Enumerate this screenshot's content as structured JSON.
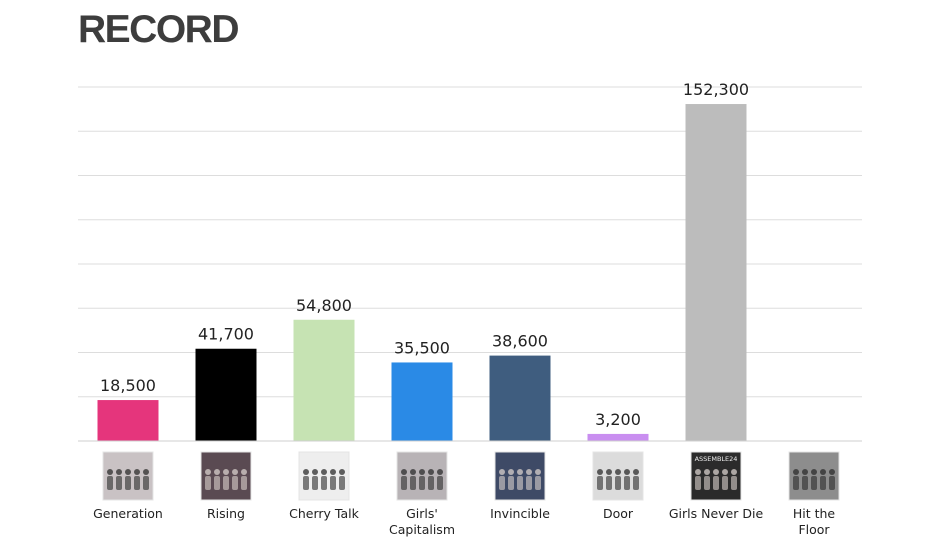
{
  "header": {
    "title": "RECORD"
  },
  "chart_data": {
    "type": "bar",
    "title": "RECORD",
    "xlabel": "",
    "ylabel": "",
    "ylim": [
      0,
      160000
    ],
    "grid": true,
    "legend": "none",
    "categories": [
      "Generation",
      "Rising",
      "Cherry Talk",
      "Girls' Capitalism",
      "Invincible",
      "Door",
      "Girls Never Die",
      "Hit the Floor"
    ],
    "category_lines": [
      [
        "Generation"
      ],
      [
        "Rising"
      ],
      [
        "Cherry Talk"
      ],
      [
        "Girls'",
        "Capitalism"
      ],
      [
        "Invincible"
      ],
      [
        "Door"
      ],
      [
        "Girls Never Die"
      ],
      [
        "Hit the",
        "Floor"
      ]
    ],
    "values": [
      18500,
      41700,
      54800,
      35500,
      38600,
      3200,
      152300,
      null
    ],
    "value_labels": [
      "18,500",
      "41,700",
      "54,800",
      "35,500",
      "38,600",
      "3,200",
      "152,300",
      ""
    ],
    "colors": [
      "#e5357c",
      "#000000",
      "#c6e3b3",
      "#2a8ae6",
      "#3f5d7f",
      "#c98ef0",
      "#bcbcbc",
      "#ffffff"
    ],
    "album_cover_icons": [
      "album-cover-generation-icon",
      "album-cover-rising-icon",
      "album-cover-cherry-talk-icon",
      "album-cover-girls-capitalism-icon",
      "album-cover-invincible-icon",
      "album-cover-door-icon",
      "album-cover-girls-never-die-icon",
      "album-cover-hit-the-floor-icon"
    ],
    "album_cover_tints": [
      "#c9c2c4",
      "#5a4a52",
      "#eeeeee",
      "#b8b3b6",
      "#3e4a66",
      "#dcdcdc",
      "#2b2b2b",
      "#8d8d8d"
    ],
    "album_cover_text": [
      "",
      "",
      "",
      "",
      "",
      "",
      "ASSEMBLE24",
      ""
    ]
  }
}
